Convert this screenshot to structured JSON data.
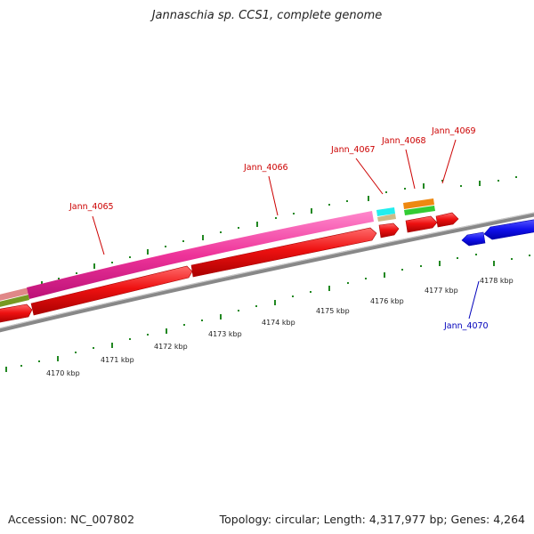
{
  "header": {
    "title": "Jannaschia sp. CCS1, complete genome"
  },
  "footer": {
    "accession": "Accession: NC_007802",
    "summary": "Topology: circular; Length: 4,317,977 bp; Genes: 4,264"
  },
  "scale": {
    "tick_labels": [
      "4170 kbp",
      "4171 kbp",
      "4172 kbp",
      "4173 kbp",
      "4174 kbp",
      "4175 kbp",
      "4176 kbp",
      "4177 kbp",
      "4178 kbp"
    ]
  },
  "genes": {
    "labels": [
      {
        "name": "Jann_4065",
        "color": "#cc0000"
      },
      {
        "name": "Jann_4066",
        "color": "#cc0000"
      },
      {
        "name": "Jann_4067",
        "color": "#cc0000"
      },
      {
        "name": "Jann_4068",
        "color": "#cc0000"
      },
      {
        "name": "Jann_4069",
        "color": "#cc0000"
      },
      {
        "name": "Jann_4070",
        "color": "#0000bb"
      }
    ]
  },
  "colors": {
    "cds_forward": "#ee1111",
    "cds_reverse": "#1111ee",
    "feature_pink": "#ee3399",
    "feature_cyan": "#22eeee",
    "feature_tan": "#ccbb88",
    "feature_orange": "#ee8811",
    "feature_green": "#33cc33",
    "feature_olive": "#779922",
    "feature_salmon": "#e08888",
    "backbone": "#888888",
    "ticks": "#228822"
  }
}
